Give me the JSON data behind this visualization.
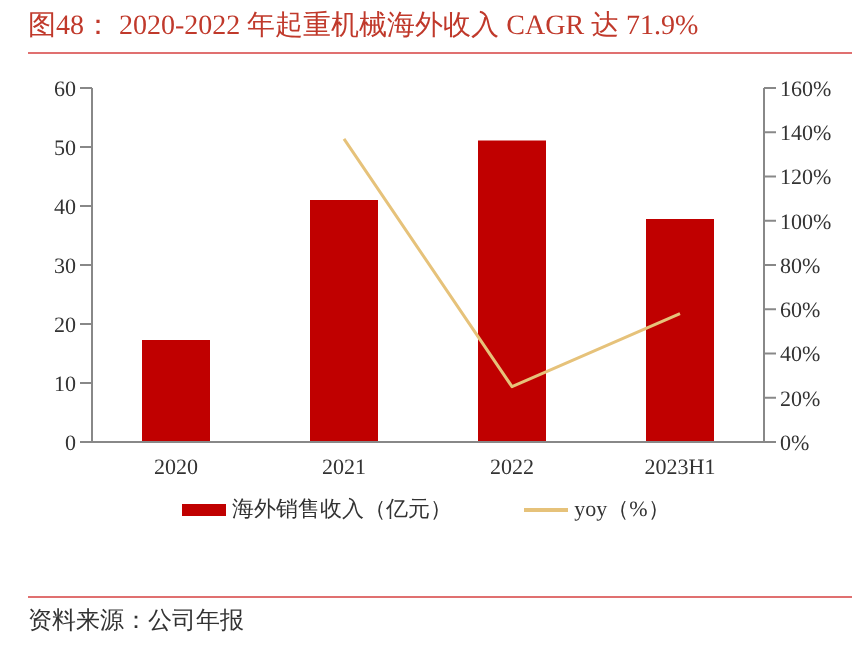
{
  "chart_data": {
    "type": "bar",
    "title": "图48：  2020-2022 年起重机械海外收入 CAGR 达 71.9%",
    "categories": [
      "2020",
      "2021",
      "2022",
      "2023H1"
    ],
    "series": [
      {
        "name": "海外销售收入（亿元）",
        "color": "#c00000",
        "values": [
          17.3,
          41.0,
          51.1,
          37.8
        ]
      },
      {
        "name": "yoy（%）",
        "type": "line",
        "axis": "y2",
        "color": "#e6c27a",
        "values": [
          null,
          137,
          25,
          58
        ]
      }
    ],
    "ylim": [
      0,
      60
    ],
    "yticks": [
      0,
      10,
      20,
      30,
      40,
      50,
      60
    ],
    "y2lim": [
      0,
      160
    ],
    "y2ticks": [
      {
        "value": 0,
        "label": "0%"
      },
      {
        "value": 20,
        "label": "20%"
      },
      {
        "value": 40,
        "label": "40%"
      },
      {
        "value": 60,
        "label": "60%"
      },
      {
        "value": 80,
        "label": "80%"
      },
      {
        "value": 100,
        "label": "100%"
      },
      {
        "value": 120,
        "label": "120%"
      },
      {
        "value": 140,
        "label": "140%"
      },
      {
        "value": 160,
        "label": "160%"
      }
    ],
    "legend": "bottom",
    "marker": "none",
    "annotations": [
      "资料来源：公司年报"
    ]
  }
}
